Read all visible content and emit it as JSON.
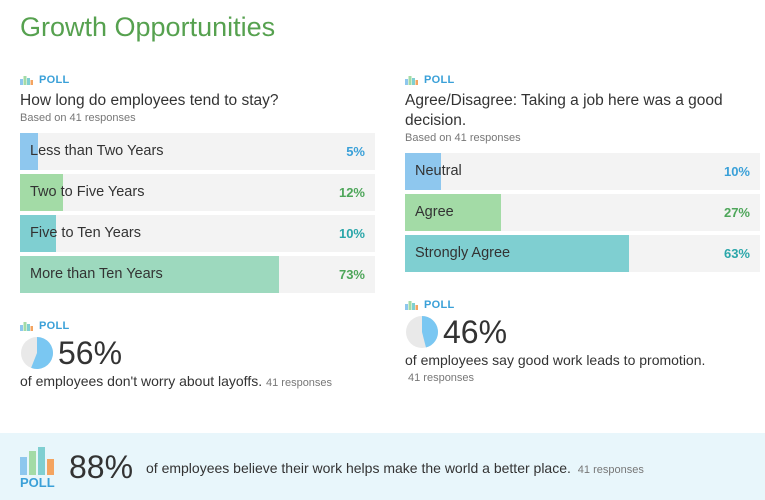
{
  "section_title": "Growth Opportunities",
  "poll_label": "POLL",
  "colors": {
    "title_green": "#56a14f",
    "poll_blue": "#3aa0d8",
    "bar_blue": "#8ec7ee",
    "bar_green": "#a3dba6",
    "bar_teal": "#7fcfd1",
    "bar_mint": "#9dd9be",
    "pct_blue": "#3aa0d8",
    "pct_green": "#4ea65a",
    "pct_teal": "#2aa6a9",
    "pie_fill": "#7ac7f2",
    "pie_bg": "#e9e9e9",
    "footer_bg": "#e8f6fb"
  },
  "left_poll": {
    "question": "How long do employees tend to stay?",
    "based_on": "Based on 41 responses",
    "options": [
      {
        "label": "Less than Two Years",
        "pct_text": "5%",
        "value": 5,
        "color": "#8ec7ee",
        "pct_color": "#3aa0d8"
      },
      {
        "label": "Two to Five Years",
        "pct_text": "12%",
        "value": 12,
        "color": "#a3dba6",
        "pct_color": "#4ea65a"
      },
      {
        "label": "Five to Ten Years",
        "pct_text": "10%",
        "value": 10,
        "color": "#7fcfd1",
        "pct_color": "#2aa6a9"
      },
      {
        "label": "More than Ten Years",
        "pct_text": "73%",
        "value": 73,
        "color": "#9dd9be",
        "pct_color": "#4ea65a"
      }
    ]
  },
  "right_poll": {
    "question": "Agree/Disagree: Taking a job here was a good decision.",
    "based_on": "Based on 41 responses",
    "options": [
      {
        "label": "Neutral",
        "pct_text": "10%",
        "value": 10,
        "color": "#8ec7ee",
        "pct_color": "#3aa0d8"
      },
      {
        "label": "Agree",
        "pct_text": "27%",
        "value": 27,
        "color": "#a3dba6",
        "pct_color": "#4ea65a"
      },
      {
        "label": "Strongly Agree",
        "pct_text": "63%",
        "value": 63,
        "color": "#7fcfd1",
        "pct_color": "#2aa6a9"
      }
    ]
  },
  "layoffs_stat": {
    "value_text": "56%",
    "value": 56,
    "text": "of employees don't worry about layoffs.",
    "responses": "41 responses"
  },
  "promotion_stat": {
    "value_text": "46%",
    "value": 46,
    "text": "of employees say good work leads to promotion.",
    "responses": "41 responses"
  },
  "footer_stat": {
    "value_text": "88%",
    "text": "of employees believe their work helps make the world a better place.",
    "responses": "41 responses"
  }
}
